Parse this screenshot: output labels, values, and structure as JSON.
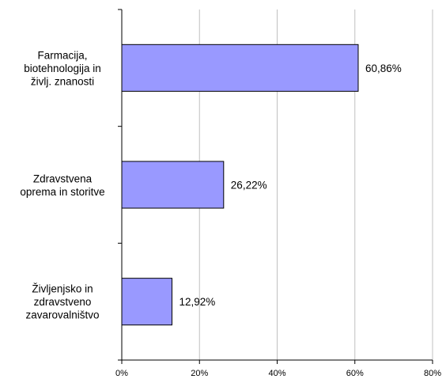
{
  "chart_data": {
    "type": "bar",
    "orientation": "horizontal",
    "categories": [
      [
        "Farmacija,",
        "biotehnologija in",
        "življ. znanosti"
      ],
      [
        "Zdravstvena",
        "oprema in storitve"
      ],
      [
        "Življenjsko in",
        "zdravstveno",
        "zavarovalništvo"
      ]
    ],
    "values": [
      60.86,
      26.22,
      12.92
    ],
    "data_labels": [
      "60,86%",
      "26,22%",
      "12,92%"
    ],
    "x_ticks": [
      0,
      20,
      40,
      60,
      80
    ],
    "x_tick_labels": [
      "0%",
      "20%",
      "40%",
      "60%",
      "80%"
    ],
    "xlim": [
      0,
      80
    ],
    "title": "",
    "xlabel": "",
    "ylabel": "",
    "grid": "vertical",
    "legend": "none",
    "colors": {
      "bar_fill": "#9999ff",
      "bar_stroke": "#000000",
      "gridline": "#c0c0c0",
      "axis": "#000000",
      "background": "#ffffff"
    }
  }
}
